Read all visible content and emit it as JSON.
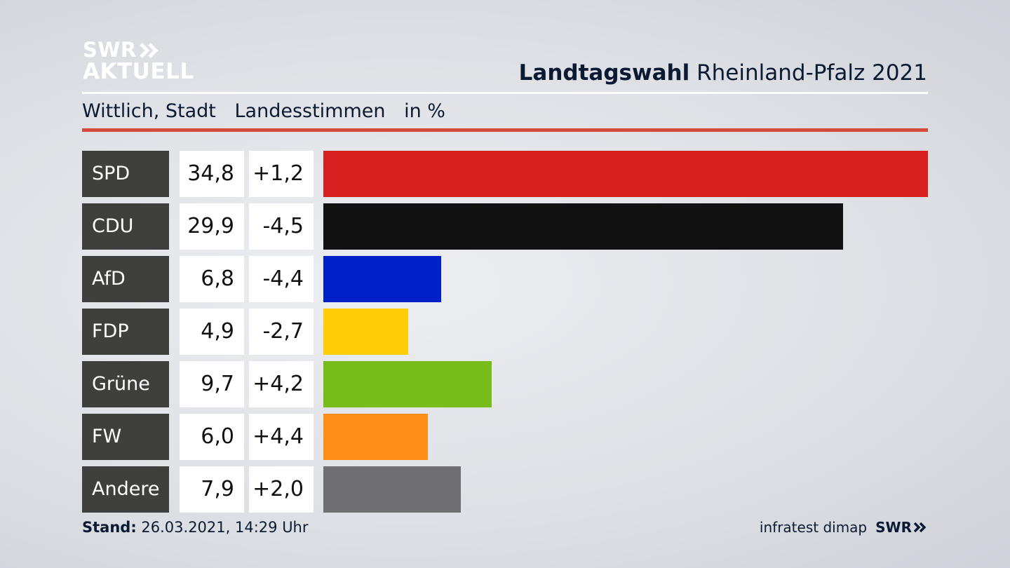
{
  "logo": {
    "line1": "SWR",
    "line2": "AKTUELL"
  },
  "header": {
    "title_bold": "Landtagswahl",
    "title_rest": "Rheinland-Pfalz 2021"
  },
  "subheader": {
    "place": "Wittlich, Stadt",
    "measure": "Landesstimmen",
    "unit": "in %"
  },
  "chart_data": {
    "type": "bar",
    "title": "Landtagswahl Rheinland-Pfalz 2021",
    "subtitle": "Wittlich, Stadt — Landesstimmen in %",
    "categories": [
      "SPD",
      "CDU",
      "AfD",
      "FDP",
      "Grüne",
      "FW",
      "Andere"
    ],
    "values": [
      34.8,
      29.9,
      6.8,
      4.9,
      9.7,
      6.0,
      7.9
    ],
    "value_labels": [
      "34,8",
      "29,9",
      "6,8",
      "4,9",
      "9,7",
      "6,0",
      "7,9"
    ],
    "changes": [
      1.2,
      -4.5,
      -4.4,
      -2.7,
      4.2,
      4.4,
      2.0
    ],
    "change_labels": [
      "+1,2",
      "-4,5",
      "-4,4",
      "-2,7",
      "+4,2",
      "+4,4",
      "+2,0"
    ],
    "colors": [
      "#d71f1f",
      "#121212",
      "#0021c9",
      "#ffcd05",
      "#78bc1b",
      "#fd8f18",
      "#6f6f71"
    ],
    "orientation": "horizontal",
    "xlim": [
      0,
      34.8
    ]
  },
  "footer": {
    "stand_label": "Stand:",
    "stand_value": "26.03.2021, 14:29 Uhr",
    "source": "infratest dimap",
    "brand": "SWR"
  }
}
